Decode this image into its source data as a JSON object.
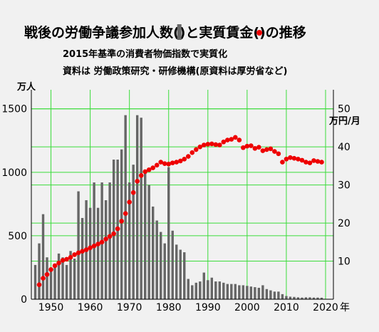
{
  "chart_data": {
    "type": "bar+scatter",
    "title_parts": [
      "戦後の労働争議参加人数(",
      ")と実質賃金(",
      ")の推移"
    ],
    "subtitle_lines": [
      "2015年基準の消費者物価指数で実質化",
      "資料は 労働政策研究・研修機構(原資料は厚労省など)"
    ],
    "y_left_unit": "万人",
    "y_right_unit": "万円/月",
    "x_axis_suffix": "年",
    "x_range": [
      1945,
      2022
    ],
    "x_ticks": [
      1950,
      1960,
      1970,
      1980,
      1990,
      2000,
      2010,
      2020
    ],
    "y_left_range": [
      0,
      1650
    ],
    "y_left_ticks": [
      0,
      500,
      1000,
      1500
    ],
    "y_right_range": [
      0,
      55
    ],
    "y_right_ticks": [
      10,
      20,
      30,
      40,
      50
    ],
    "grid": true,
    "colors": {
      "bar": "#666666",
      "dot": "#ee0000",
      "grid": "#3bdc3b",
      "background": "#f1f1f1"
    },
    "series": [
      {
        "kind": "bar",
        "axis": "left",
        "x": [
          1946,
          1947,
          1948,
          1949,
          1950,
          1951,
          1952,
          1953,
          1954,
          1955,
          1956,
          1957,
          1958,
          1959,
          1960,
          1961,
          1962,
          1963,
          1964,
          1965,
          1966,
          1967,
          1968,
          1969,
          1970,
          1971,
          1972,
          1973,
          1974,
          1975,
          1976,
          1977,
          1978,
          1979,
          1980,
          1981,
          1982,
          1983,
          1984,
          1985,
          1986,
          1987,
          1988,
          1989,
          1990,
          1991,
          1992,
          1993,
          1994,
          1995,
          1996,
          1997,
          1998,
          1999,
          2000,
          2001,
          2002,
          2003,
          2004,
          2005,
          2006,
          2007,
          2008,
          2009,
          2010,
          2011,
          2012,
          2013,
          2014,
          2015,
          2016,
          2017,
          2018,
          2019
        ],
        "values": [
          270,
          440,
          670,
          330,
          230,
          280,
          360,
          330,
          270,
          380,
          320,
          850,
          640,
          780,
          720,
          920,
          720,
          920,
          780,
          920,
          1100,
          1100,
          1180,
          1450,
          920,
          1060,
          1450,
          1430,
          1020,
          900,
          730,
          620,
          530,
          440,
          1040,
          540,
          430,
          390,
          370,
          160,
          110,
          130,
          140,
          210,
          150,
          170,
          140,
          140,
          130,
          120,
          120,
          120,
          110,
          110,
          105,
          100,
          95,
          90,
          110,
          80,
          70,
          60,
          60,
          40,
          25,
          20,
          18,
          15,
          13,
          15,
          15,
          13,
          13,
          12
        ]
      },
      {
        "kind": "scatter",
        "axis": "right",
        "x": [
          1947,
          1948,
          1949,
          1950,
          1951,
          1952,
          1953,
          1954,
          1955,
          1956,
          1957,
          1958,
          1959,
          1960,
          1961,
          1962,
          1963,
          1964,
          1965,
          1966,
          1967,
          1968,
          1969,
          1970,
          1971,
          1972,
          1973,
          1974,
          1975,
          1976,
          1977,
          1978,
          1979,
          1980,
          1981,
          1982,
          1983,
          1984,
          1985,
          1986,
          1987,
          1988,
          1989,
          1990,
          1991,
          1992,
          1993,
          1994,
          1995,
          1996,
          1997,
          1998,
          1999,
          2000,
          2001,
          2002,
          2003,
          2004,
          2005,
          2006,
          2007,
          2008,
          2009,
          2010,
          2011,
          2012,
          2013,
          2014,
          2015,
          2016,
          2017,
          2018,
          2019
        ],
        "values": [
          3.8,
          5.5,
          6.5,
          7.8,
          8.8,
          9.5,
          10.2,
          10.5,
          11.0,
          11.7,
          12.2,
          12.6,
          13.0,
          13.5,
          14.0,
          14.5,
          15.0,
          15.8,
          16.5,
          17.2,
          18.5,
          20.5,
          22.5,
          25.5,
          28.0,
          31.0,
          32.5,
          33.5,
          34.0,
          34.5,
          35.2,
          36.0,
          35.6,
          35.5,
          35.8,
          36.0,
          36.3,
          36.8,
          37.5,
          38.5,
          39.3,
          40.0,
          40.5,
          40.7,
          40.8,
          40.6,
          40.5,
          41.3,
          41.8,
          42.0,
          42.5,
          41.8,
          39.8,
          40.2,
          40.3,
          39.6,
          39.9,
          39.0,
          39.3,
          39.5,
          38.8,
          38.2,
          36.0,
          36.8,
          37.2,
          37.0,
          36.8,
          36.5,
          36.0,
          35.8,
          36.4,
          36.2,
          36.0
        ]
      }
    ]
  }
}
